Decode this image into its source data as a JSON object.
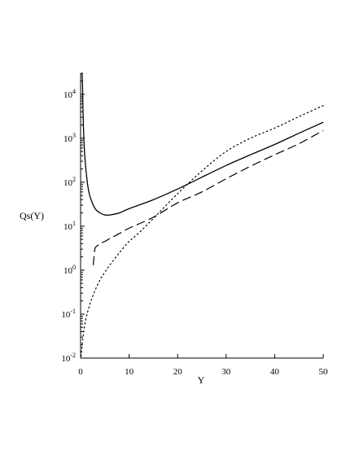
{
  "chart_data": {
    "type": "line",
    "xlabel": "Y",
    "ylabel": "Qs(Y)",
    "xlim": [
      0,
      50
    ],
    "ylim": [
      0.01,
      30000
    ],
    "y_scale": "log",
    "grid": false,
    "x_ticks": [
      {
        "value": 0,
        "label": "0"
      },
      {
        "value": 10,
        "label": "10"
      },
      {
        "value": 20,
        "label": "20"
      },
      {
        "value": 30,
        "label": "30"
      },
      {
        "value": 40,
        "label": "40"
      },
      {
        "value": 50,
        "label": "50"
      }
    ],
    "y_ticks": [
      {
        "value": 0.01,
        "base": "10",
        "exp": "-2"
      },
      {
        "value": 0.1,
        "base": "10",
        "exp": "-1"
      },
      {
        "value": 1,
        "base": "10",
        "exp": "0"
      },
      {
        "value": 10,
        "base": "10",
        "exp": "1"
      },
      {
        "value": 100,
        "base": "10",
        "exp": "2"
      },
      {
        "value": 1000,
        "base": "10",
        "exp": "3"
      },
      {
        "value": 10000,
        "base": "10",
        "exp": "4"
      }
    ],
    "series": [
      {
        "style": "solid",
        "x": [
          0.3,
          0.4,
          0.5,
          0.7,
          1.0,
          1.5,
          2,
          3,
          4,
          5,
          6,
          8,
          10,
          15,
          20,
          25,
          30,
          35,
          40,
          45,
          50
        ],
        "y": [
          30000,
          15000,
          4000,
          800,
          250,
          80,
          45,
          25,
          20,
          18,
          18,
          20,
          25,
          40,
          70,
          130,
          240,
          420,
          720,
          1300,
          2300
        ]
      },
      {
        "style": "dash",
        "x": [
          2.6,
          2.8,
          3,
          3.5,
          4,
          5,
          6,
          8,
          10,
          15,
          20,
          25,
          30,
          35,
          40,
          45,
          50
        ],
        "y": [
          1.3,
          2.2,
          3.2,
          3.6,
          4,
          4.5,
          5.2,
          6.8,
          9,
          16,
          34,
          60,
          120,
          230,
          420,
          750,
          1500
        ]
      },
      {
        "style": "dot",
        "x": [
          0.1,
          0.5,
          1,
          2,
          3,
          4,
          5,
          6,
          8,
          10,
          12,
          15,
          20,
          25,
          30,
          35,
          40,
          45,
          50
        ],
        "y": [
          0.011,
          0.03,
          0.07,
          0.18,
          0.35,
          0.6,
          0.9,
          1.3,
          2.5,
          4.5,
          7,
          15,
          55,
          180,
          500,
          1000,
          1700,
          3100,
          5500
        ]
      }
    ]
  }
}
